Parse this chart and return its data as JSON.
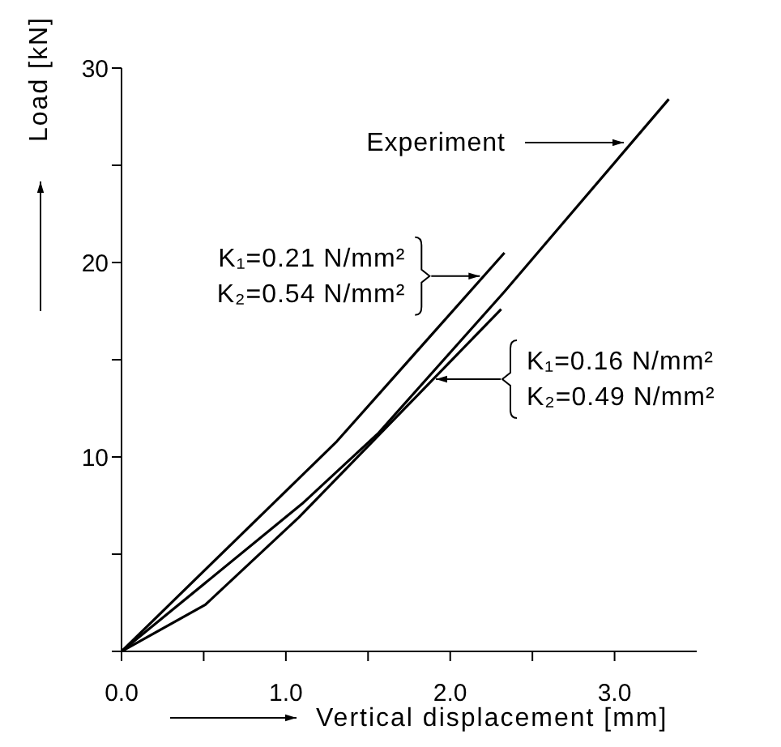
{
  "chart_data": {
    "type": "line",
    "xlabel": "Vertical displacement [mm]",
    "ylabel": "Load [kN]",
    "xlim": [
      0,
      3.5
    ],
    "ylim": [
      0,
      30
    ],
    "xticks": [
      {
        "value": 0,
        "label": "0.0"
      },
      {
        "value": 0.5,
        "label": null
      },
      {
        "value": 1,
        "label": "1.0"
      },
      {
        "value": 1.5,
        "label": null
      },
      {
        "value": 2,
        "label": "2.0"
      },
      {
        "value": 2.5,
        "label": null
      },
      {
        "value": 3,
        "label": "3.0"
      }
    ],
    "yticks": [
      {
        "value": 0,
        "label": null
      },
      {
        "value": 5,
        "label": null
      },
      {
        "value": 10,
        "label": "10"
      },
      {
        "value": 15,
        "label": null
      },
      {
        "value": 20,
        "label": "20"
      },
      {
        "value": 25,
        "label": null
      },
      {
        "value": 30,
        "label": "30"
      }
    ],
    "grid": false,
    "legend": false,
    "marker": "none",
    "line_style": "solid",
    "series": [
      {
        "color": "#000000",
        "x": [
          0,
          1.1,
          1.56,
          2.33,
          3.33
        ],
        "values": [
          0,
          7.6,
          11.2,
          18.5,
          28.4
        ]
      },
      {
        "color": "#000000",
        "x": [
          0,
          1.31,
          2.33
        ],
        "values": [
          0,
          10.8,
          20.5
        ]
      },
      {
        "color": "#000000",
        "x": [
          0,
          0.51,
          1.08,
          2.31
        ],
        "values": [
          0,
          2.4,
          6.9,
          17.6
        ]
      }
    ],
    "annotations": [
      "Experiment",
      {
        "text": "K₁=0.21 N/mm²\nK₂=0.54 N/mm²",
        "x": 2.2,
        "y": 19.3
      },
      "K₁=0.16 N/mm²\nK₂=0.49 N/mm²"
    ]
  }
}
